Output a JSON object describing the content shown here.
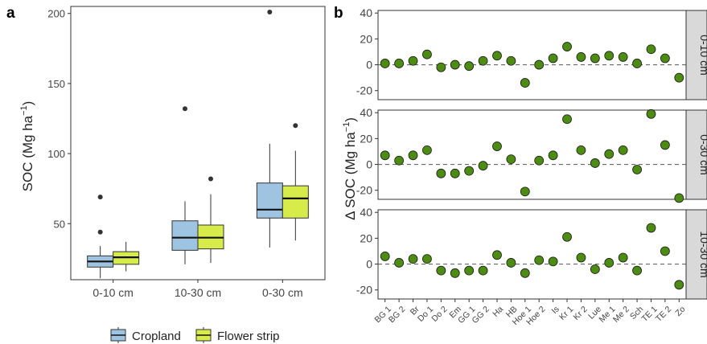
{
  "chart_data": [
    {
      "panel_label": "a",
      "type": "box",
      "ylabel": "SOC (Mg ha",
      "ylabel_sup": "−1",
      "ylabel_close": ")",
      "ylim": [
        10,
        205
      ],
      "yticks": [
        50,
        100,
        150,
        200
      ],
      "categories": [
        "0-10 cm",
        "10-30 cm",
        "0-30 cm"
      ],
      "series": [
        {
          "name": "Cropland",
          "color": "#9ec4e2",
          "boxes": [
            {
              "whisker_low": 11,
              "q1": 19,
              "median": 23,
              "q3": 27,
              "whisker_high": 34,
              "outliers": [
                69,
                44
              ]
            },
            {
              "whisker_low": 21,
              "q1": 31,
              "median": 40,
              "q3": 52,
              "whisker_high": 66,
              "outliers": [
                132
              ]
            },
            {
              "whisker_low": 33,
              "q1": 54,
              "median": 60,
              "q3": 79,
              "whisker_high": 107,
              "outliers": [
                201
              ]
            }
          ]
        },
        {
          "name": "Flower strip",
          "color": "#d7ec4a",
          "boxes": [
            {
              "whisker_low": 16,
              "q1": 21,
              "median": 26,
              "q3": 30,
              "whisker_high": 37,
              "outliers": []
            },
            {
              "whisker_low": 22,
              "q1": 32,
              "median": 40,
              "q3": 49,
              "whisker_high": 71,
              "outliers": [
                82
              ]
            },
            {
              "whisker_low": 38,
              "q1": 54,
              "median": 68,
              "q3": 77,
              "whisker_high": 102,
              "outliers": [
                120
              ]
            }
          ]
        }
      ],
      "legend_position": "bottom"
    },
    {
      "panel_label": "b",
      "type": "scatter",
      "ylabel": "Δ SOC (Mg ha",
      "ylabel_sup": "−1",
      "ylabel_close": ")",
      "ylim": [
        -27,
        42
      ],
      "yticks": [
        -20,
        0,
        20,
        40
      ],
      "reference_line": 0,
      "marker_color": "#4d8c12",
      "categories": [
        "BG 1",
        "BG 2",
        "Br",
        "Do 1",
        "Do 2",
        "Em",
        "GG 1",
        "GG 2",
        "Ha",
        "HB",
        "Hoe 1",
        "Hoe 2",
        "Is",
        "Kr 1",
        "Kr 2",
        "Lue",
        "Me 1",
        "Me 2",
        "Sch",
        "TE 1",
        "TE 2",
        "Zo"
      ],
      "facets": [
        {
          "strip": "0-10 cm",
          "values": [
            1,
            1,
            3,
            8,
            -2,
            0,
            -1,
            3,
            7,
            3,
            -14,
            0,
            5,
            14,
            6,
            5,
            7,
            6,
            1,
            12,
            5,
            -10
          ]
        },
        {
          "strip": "0-30 cm",
          "values": [
            7,
            3,
            7,
            11,
            -7,
            -7,
            -5,
            -1,
            14,
            4,
            -21,
            3,
            7,
            35,
            11,
            1,
            8,
            11,
            -4,
            39,
            15,
            -26
          ]
        },
        {
          "strip": "10-30 cm",
          "values": [
            6,
            1,
            4,
            4,
            -5,
            -7,
            -5,
            -5,
            7,
            1,
            -7,
            3,
            2,
            21,
            5,
            -4,
            1,
            5,
            -5,
            28,
            10,
            -16
          ]
        }
      ]
    }
  ]
}
